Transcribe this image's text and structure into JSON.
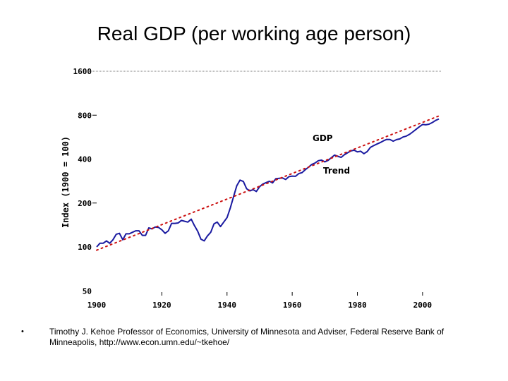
{
  "slide_title": "Real GDP (per working age person)",
  "footnote": {
    "bullet": "•",
    "text": "Timothy J. Kehoe Professor of Economics, University of Minnesota and Adviser, Federal Reserve Bank of Minneapolis, http://www.econ.umn.edu/~tkehoe/"
  },
  "colors": {
    "gdp": "#1a1aa0",
    "trend": "#cc1111",
    "grid": "#777777"
  },
  "chart_data": {
    "type": "line",
    "title": "Real GDP (per working age person)",
    "xlabel": "",
    "ylabel": "Index (1900 = 100)",
    "yscale": "log",
    "xlim": [
      1900,
      2005
    ],
    "ylim": [
      50,
      1600
    ],
    "x_ticks": [
      1900,
      1920,
      1940,
      1960,
      1980,
      2000
    ],
    "y_ticks": [
      {
        "value": 1600,
        "label": "1600"
      },
      {
        "value": 800,
        "label": "800"
      },
      {
        "value": 400,
        "label": "400"
      },
      {
        "value": 200,
        "label": "200"
      },
      {
        "value": 100,
        "label": "100"
      },
      {
        "value": 50,
        "label": "50"
      }
    ],
    "series": [
      {
        "name": "GDP",
        "style": "solid",
        "x": [
          1900,
          1901,
          1902,
          1903,
          1904,
          1905,
          1906,
          1907,
          1908,
          1909,
          1910,
          1911,
          1912,
          1913,
          1914,
          1915,
          1916,
          1917,
          1918,
          1919,
          1920,
          1921,
          1922,
          1923,
          1924,
          1925,
          1926,
          1927,
          1928,
          1929,
          1930,
          1931,
          1932,
          1933,
          1934,
          1935,
          1936,
          1937,
          1938,
          1939,
          1940,
          1941,
          1942,
          1943,
          1944,
          1945,
          1946,
          1947,
          1948,
          1949,
          1950,
          1951,
          1952,
          1953,
          1954,
          1955,
          1956,
          1957,
          1958,
          1959,
          1960,
          1961,
          1962,
          1963,
          1964,
          1965,
          1966,
          1967,
          1968,
          1969,
          1970,
          1971,
          1972,
          1973,
          1974,
          1975,
          1976,
          1977,
          1978,
          1979,
          1980,
          1981,
          1982,
          1983,
          1984,
          1985,
          1986,
          1987,
          1988,
          1989,
          1990,
          1991,
          1992,
          1993,
          1994,
          1995,
          1996,
          1997,
          1998,
          1999,
          2000,
          2001,
          2002,
          2003,
          2004,
          2005
        ],
        "values": [
          100,
          106,
          106,
          110,
          106,
          112,
          122,
          124,
          112,
          123,
          123,
          126,
          129,
          129,
          120,
          120,
          135,
          133,
          137,
          136,
          131,
          124,
          129,
          145,
          145,
          146,
          152,
          150,
          148,
          155,
          140,
          128,
          113,
          110,
          119,
          126,
          144,
          148,
          138,
          148,
          159,
          185,
          221,
          263,
          287,
          281,
          251,
          242,
          247,
          240,
          259,
          270,
          276,
          282,
          275,
          294,
          295,
          297,
          290,
          303,
          306,
          305,
          318,
          323,
          338,
          352,
          368,
          376,
          390,
          394,
          383,
          392,
          409,
          426,
          418,
          411,
          428,
          442,
          455,
          460,
          448,
          453,
          436,
          450,
          481,
          495,
          507,
          519,
          534,
          546,
          545,
          531,
          544,
          550,
          567,
          575,
          591,
          614,
          640,
          666,
          691,
          687,
          694,
          713,
          736,
          754
        ]
      },
      {
        "name": "Trend",
        "style": "dotted",
        "x": [
          1900,
          2005
        ],
        "values": [
          95,
          790
        ]
      }
    ],
    "annotations": [
      {
        "text": "GDP",
        "x": 1966,
        "y": 500
      },
      {
        "text": "Trend",
        "x": 1969,
        "y": 330
      }
    ]
  }
}
